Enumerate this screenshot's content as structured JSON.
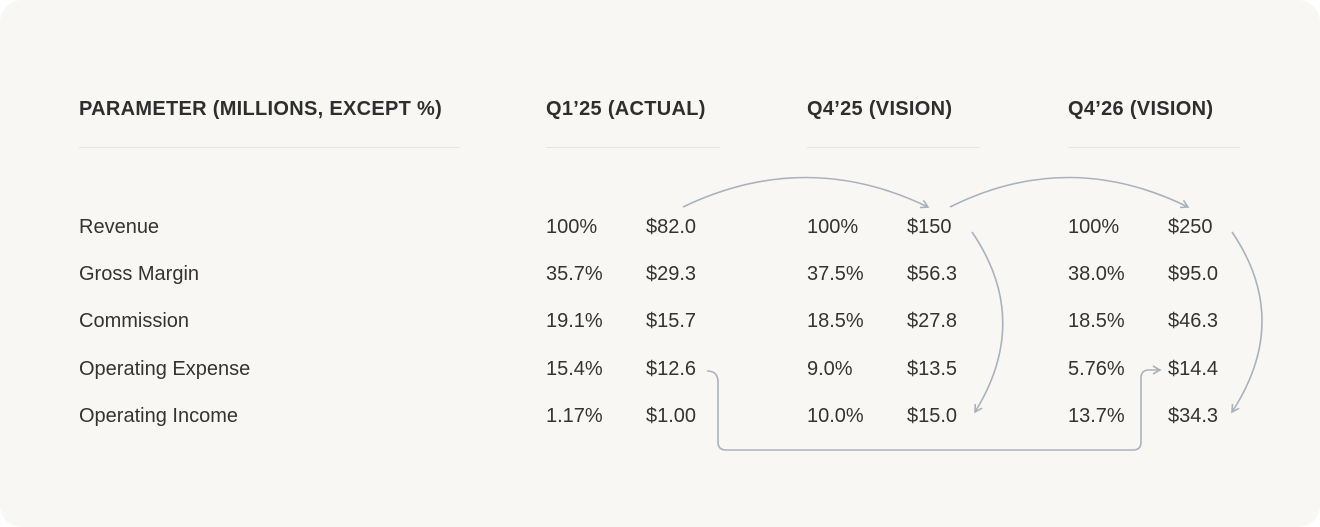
{
  "table": {
    "headers": [
      "PARAMETER (MILLIONS, EXCEPT %)",
      "Q1’25 (ACTUAL)",
      "Q4’25 (VISION)",
      "Q4’26 (VISION)"
    ],
    "rows": [
      [
        "Revenue",
        "100%",
        "$82.0",
        "100%",
        "$150",
        "100%",
        "$250"
      ],
      [
        "Gross Margin",
        "35.7%",
        "$29.3",
        "37.5%",
        "$56.3",
        "38.0%",
        "$95.0"
      ],
      [
        "Commission",
        "19.1%",
        "$15.7",
        "18.5%",
        "$27.8",
        "18.5%",
        "$46.3"
      ],
      [
        "Operating Expense",
        "15.4%",
        "$12.6",
        "9.0%",
        "$13.5",
        "5.76%",
        "$14.4"
      ],
      [
        "Operating Income",
        "1.17%",
        "$1.00",
        "10.0%",
        "$15.0",
        "13.7%",
        "$34.3"
      ]
    ]
  }
}
